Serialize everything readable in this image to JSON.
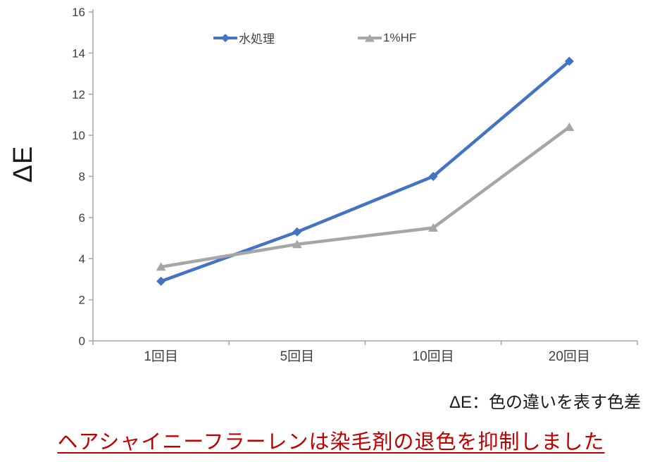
{
  "chart_data": {
    "type": "line",
    "categories": [
      "1回目",
      "5回目",
      "10回目",
      "20回目"
    ],
    "series": [
      {
        "name": "水処理",
        "values": [
          2.9,
          5.3,
          8.0,
          13.6
        ],
        "color": "#4472C4",
        "marker": "diamond"
      },
      {
        "name": "1%HF",
        "values": [
          3.6,
          4.7,
          5.5,
          10.4
        ],
        "color": "#A6A6A6",
        "marker": "triangle"
      }
    ],
    "title": "",
    "xlabel": "",
    "ylabel": "ΔE",
    "ylim": [
      0,
      16
    ],
    "ytick_step": 2,
    "grid": false,
    "legend_position": "top-center",
    "axis_color": "#A6A6A6",
    "tick_label_color": "#404040"
  },
  "caption": "ΔE：色の違いを表す色差",
  "headline": {
    "text": "ヘアシャイニーフラーレンは染毛剤の退色を抑制しました",
    "color": "#C00000"
  }
}
